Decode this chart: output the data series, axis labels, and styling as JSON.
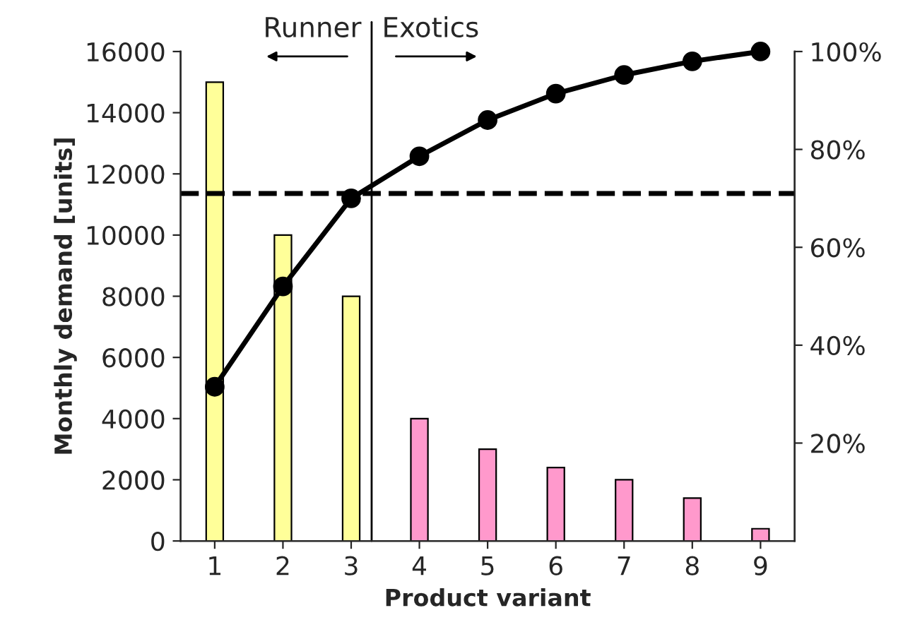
{
  "chart_data": {
    "type": "bar",
    "xlabel": "Product variant",
    "ylabel": "Monthly demand [units]",
    "x": [
      1,
      2,
      3,
      4,
      5,
      6,
      7,
      8,
      9
    ],
    "xlim": [
      0.5,
      9.5
    ],
    "xticks": [
      1,
      2,
      3,
      4,
      5,
      6,
      7,
      8,
      9
    ],
    "ylim": [
      0,
      16000
    ],
    "yticks": [
      0,
      2000,
      4000,
      6000,
      8000,
      10000,
      12000,
      14000,
      16000
    ],
    "y2lim": [
      0,
      100
    ],
    "y2ticks": [
      {
        "value": 20,
        "label": "20%"
      },
      {
        "value": 40,
        "label": "40%"
      },
      {
        "value": 60,
        "label": "60%"
      },
      {
        "value": 80,
        "label": "80%"
      },
      {
        "value": 100,
        "label": "100%"
      }
    ],
    "series": [
      {
        "values": [
          15000,
          10000,
          8000,
          4000,
          3000,
          2400,
          2000,
          1400,
          400
        ],
        "colors": [
          "#ffff99",
          "#ffff99",
          "#ffff99",
          "#ff99cc",
          "#ff99cc",
          "#ff99cc",
          "#ff99cc",
          "#ff99cc",
          "#ff99cc"
        ]
      },
      {
        "type": "line",
        "axis": "y2",
        "color": "#000000",
        "marker": "circle",
        "line_style": "solid",
        "values": [
          31.5,
          52,
          70,
          78.6,
          86,
          91.4,
          95.2,
          98,
          100
        ]
      }
    ],
    "ref_lines": [
      {
        "axis": "y2",
        "value": 71,
        "color": "#000000",
        "line_style": "dashed"
      },
      {
        "axis": "x",
        "value": 3.3,
        "color": "#000000",
        "line_style": "solid"
      }
    ],
    "annotations": [
      "Runner",
      "Exotics"
    ],
    "grid": false,
    "legend": false
  }
}
